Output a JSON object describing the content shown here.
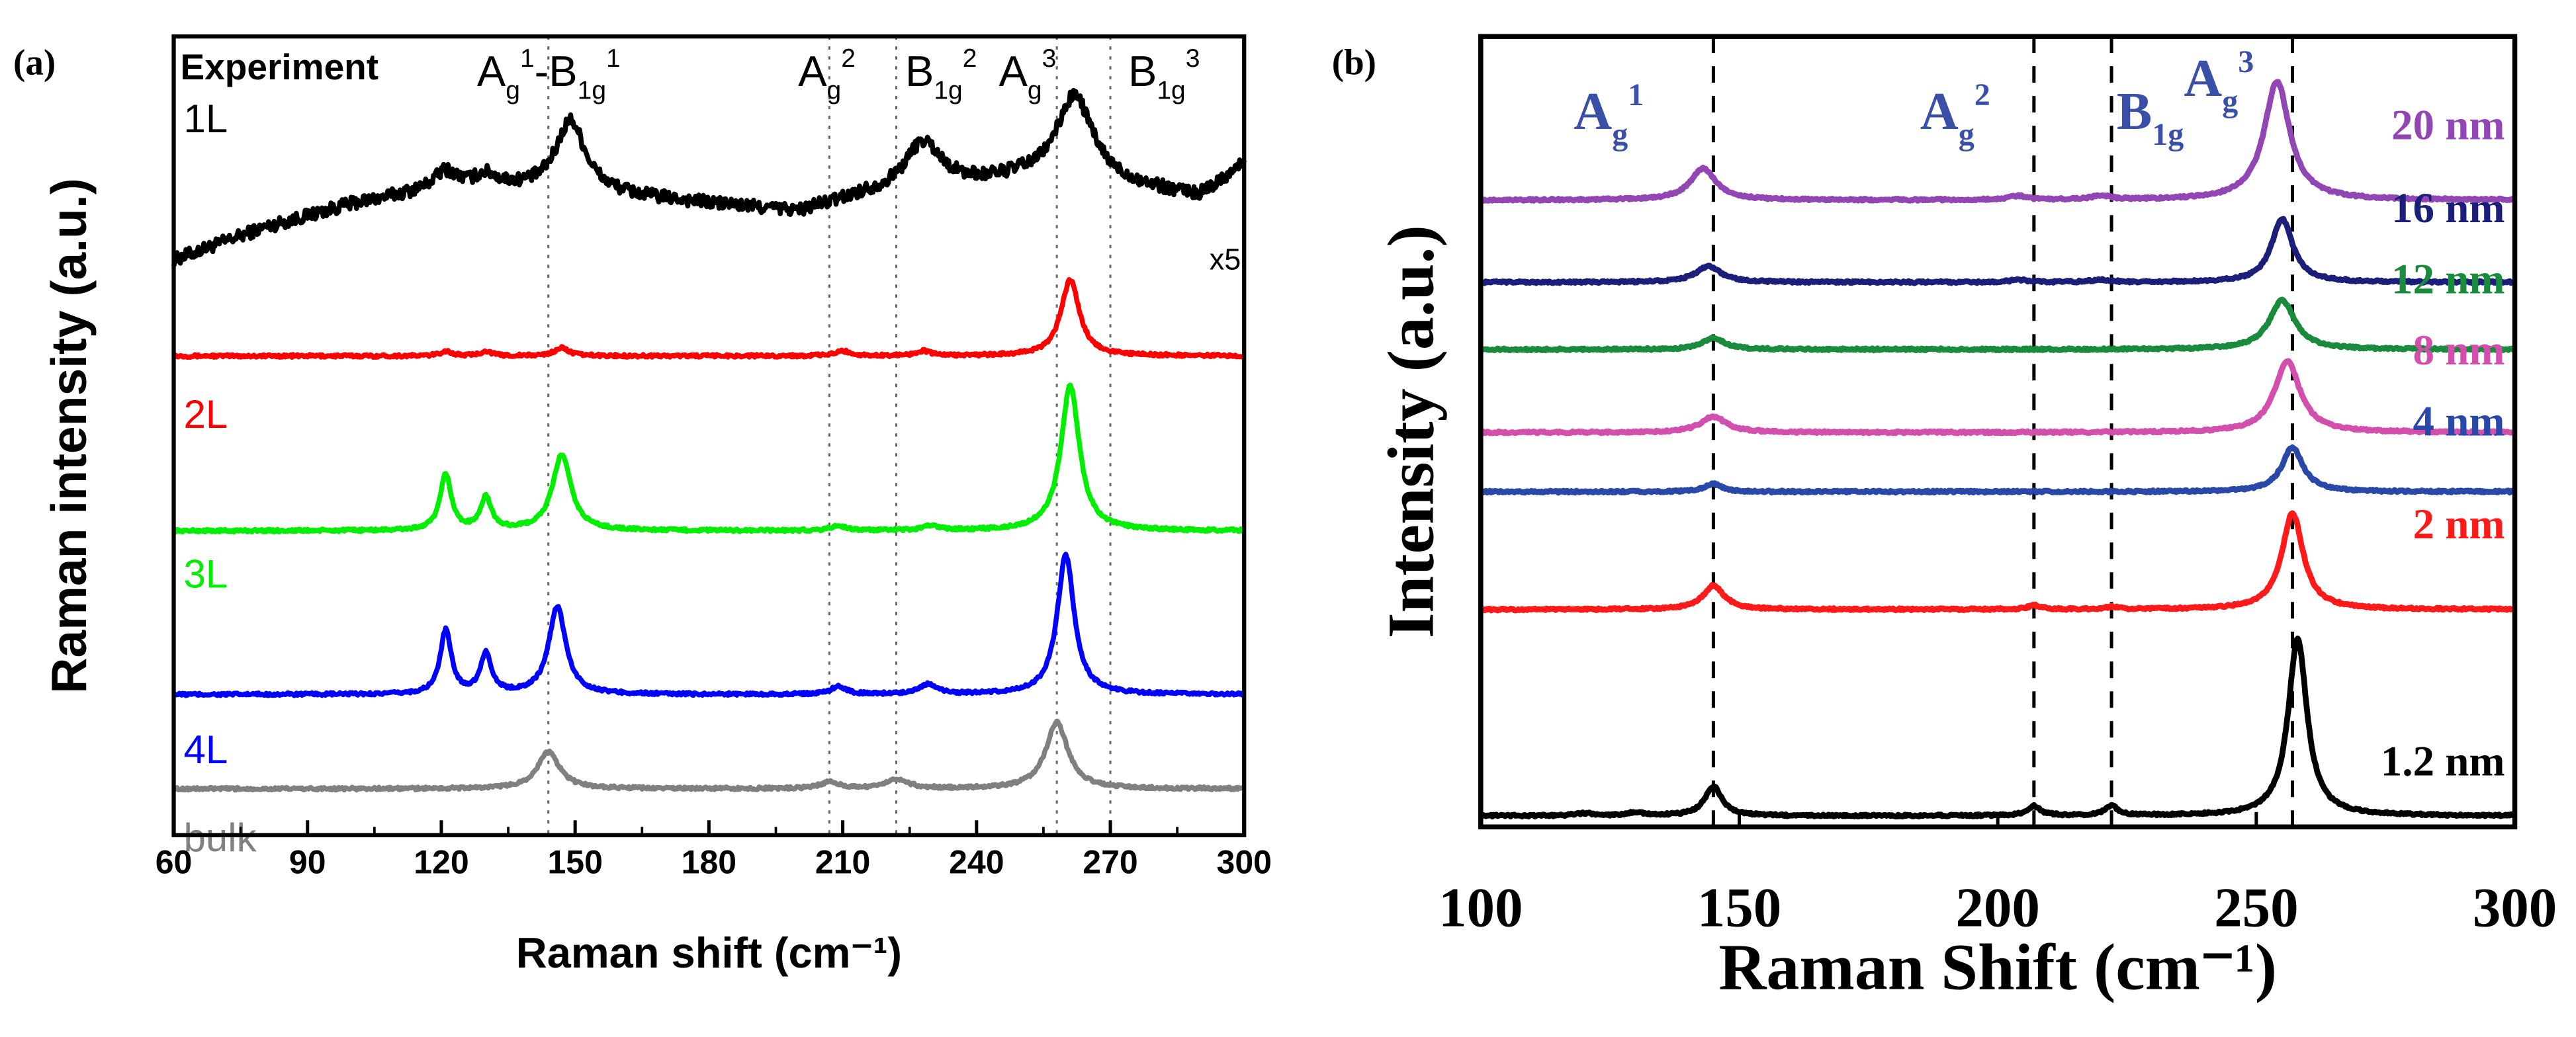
{
  "chart_data": [
    {
      "type": "line",
      "panel_label": "(a)",
      "xlabel": "Raman shift (cm⁻¹)",
      "ylabel": "Raman intensity (a.u.)",
      "xlim": [
        60,
        300
      ],
      "ylim": [
        0,
        100
      ],
      "xticks": [
        "60",
        "90",
        "120",
        "150",
        "180",
        "210",
        "240",
        "270",
        "300"
      ],
      "xtick_values": [
        60,
        90,
        120,
        150,
        180,
        210,
        240,
        270,
        300
      ],
      "ref_lines": [
        144,
        207,
        222,
        258,
        270
      ],
      "annotations": {
        "experiment": "Experiment",
        "scale": "x5",
        "modes": [
          {
            "base": "A",
            "sub": "g",
            "sup": "1",
            "base2": "-B",
            "sub2": "1g",
            "sup2": "1",
            "x": 128
          },
          {
            "base": "A",
            "sub": "g",
            "sup": "2",
            "x": 200
          },
          {
            "base": "B",
            "sub": "1g",
            "sup": "2",
            "x": 224
          },
          {
            "base": "A",
            "sub": "g",
            "sup": "3",
            "x": 245
          },
          {
            "base": "B",
            "sub": "1g",
            "sup": "3",
            "x": 274
          }
        ]
      },
      "series": [
        {
          "name": "1L",
          "color": "#000000",
          "label_y": 88,
          "baseline_points": [
            [
              60,
              72
            ],
            [
              80,
              76
            ],
            [
              100,
              79
            ],
            [
              120,
              81
            ],
            [
              135,
              81
            ],
            [
              160,
              80
            ],
            [
              180,
              79
            ],
            [
              200,
              78
            ],
            [
              215,
              80
            ],
            [
              250,
              82
            ],
            [
              275,
              81
            ],
            [
              290,
              80
            ],
            [
              300,
              84
            ]
          ],
          "peaks": [
            [
              149,
              9,
              4
            ],
            [
              121,
              2,
              3
            ],
            [
              130,
              1.5,
              3
            ],
            [
              228,
              6,
              5
            ],
            [
              262,
              11,
              5
            ]
          ]
        },
        {
          "name": "2L",
          "color": "#ff0000",
          "label_y": 51,
          "baseline": 60,
          "peaks": [
            [
              261,
              9.5,
              2.5
            ],
            [
              147,
              1,
              2
            ],
            [
              121,
              0.6,
              1.5
            ],
            [
              130,
              0.6,
              1.5
            ],
            [
              210,
              0.6,
              2
            ],
            [
              228,
              0.6,
              2
            ]
          ]
        },
        {
          "name": "3L",
          "color": "#00ee00",
          "label_y": 31,
          "baseline": 38.1,
          "peaks": [
            [
              261,
              18.2,
              2.5
            ],
            [
              147,
              9.5,
              2.5
            ],
            [
              121,
              7,
              1.5
            ],
            [
              130,
              4,
              1.5
            ],
            [
              209,
              0.6,
              2
            ],
            [
              230,
              0.6,
              2
            ]
          ]
        },
        {
          "name": "4L",
          "color": "#0000ff",
          "label_y": 9,
          "baseline": 17.6,
          "peaks": [
            [
              260,
              17.4,
              2.3
            ],
            [
              146,
              11,
              2.3
            ],
            [
              121,
              8,
              1.5
            ],
            [
              130,
              5,
              1.5
            ],
            [
              209,
              1,
              2
            ],
            [
              229,
              1.2,
              2.5
            ]
          ]
        },
        {
          "name": "bulk",
          "color": "#808080",
          "label_y": -2,
          "baseline": 5.8,
          "peaks": [
            [
              258,
              8.3,
              3
            ],
            [
              144,
              4.6,
              3
            ],
            [
              222,
              1.2,
              3
            ],
            [
              207,
              0.8,
              2.5
            ]
          ]
        }
      ]
    },
    {
      "type": "line",
      "panel_label": "(b)",
      "xlabel": "Raman Shift (cm⁻¹)",
      "ylabel": "Intensity (a.u.)",
      "xlim": [
        100,
        300
      ],
      "ylim": [
        0,
        100
      ],
      "xticks": [
        "100",
        "150",
        "200",
        "250",
        "300"
      ],
      "xtick_values": [
        100,
        150,
        200,
        250,
        300
      ],
      "ref_lines": [
        145,
        207,
        222,
        257
      ],
      "annotations": {
        "color": "#3a4fa8",
        "modes": [
          {
            "base": "A",
            "sub": "g",
            "sup": "1",
            "x": 118
          },
          {
            "base": "A",
            "sub": "g",
            "sup": "2",
            "x": 185
          },
          {
            "base": "B",
            "sub": "1g",
            "x": 223
          },
          {
            "base": "A",
            "sub": "g",
            "sup": "3",
            "x": 236
          }
        ]
      },
      "series": [
        {
          "name": "20 nm",
          "color": "#9146b4",
          "label_y": 87,
          "baseline": 79.3,
          "peaks": [
            [
              254,
              15,
              3
            ],
            [
              143,
              4,
              3
            ],
            [
              204,
              0.5,
              2
            ],
            [
              220,
              0.5,
              2
            ]
          ]
        },
        {
          "name": "16 nm",
          "color": "#1c1f7a",
          "label_y": 76.5,
          "baseline": 68.9,
          "peaks": [
            [
              255,
              8,
              2.5
            ],
            [
              144,
              2,
              3
            ],
            [
              204,
              0.3,
              2
            ],
            [
              220,
              0.3,
              2
            ]
          ]
        },
        {
          "name": "12 nm",
          "color": "#1a8a3c",
          "label_y": 67.5,
          "baseline": 60.4,
          "peaks": [
            [
              255,
              6.2,
              3
            ],
            [
              145,
              1.5,
              2.5
            ]
          ]
        },
        {
          "name": "8 nm",
          "color": "#d24fae",
          "label_y": 58.5,
          "baseline": 49.9,
          "peaks": [
            [
              256,
              9,
              3
            ],
            [
              145,
              2,
              3
            ]
          ]
        },
        {
          "name": "4 nm",
          "color": "#2a48a8",
          "label_y": 49.5,
          "baseline": 42.4,
          "peaks": [
            [
              257,
              5.6,
              2.5
            ],
            [
              145,
              1,
              2
            ]
          ]
        },
        {
          "name": "2 nm",
          "color": "#ff1a1a",
          "label_y": 36.5,
          "baseline": 27.5,
          "peaks": [
            [
              257,
              12.2,
              2.5
            ],
            [
              145,
              3,
              2.5
            ],
            [
              207,
              0.5,
              1.5
            ],
            [
              222,
              0.3,
              1.5
            ]
          ]
        },
        {
          "name": "1.2 nm",
          "color": "#000000",
          "label_y": 6.5,
          "baseline": 1.4,
          "peaks": [
            [
              258,
              22.4,
              2.2
            ],
            [
              145,
              3.7,
              2
            ],
            [
              207,
              1.2,
              1.5
            ],
            [
              222,
              1.2,
              1.5
            ],
            [
              130,
              0.4,
              2
            ],
            [
              120,
              0.3,
              2
            ]
          ]
        }
      ]
    }
  ]
}
